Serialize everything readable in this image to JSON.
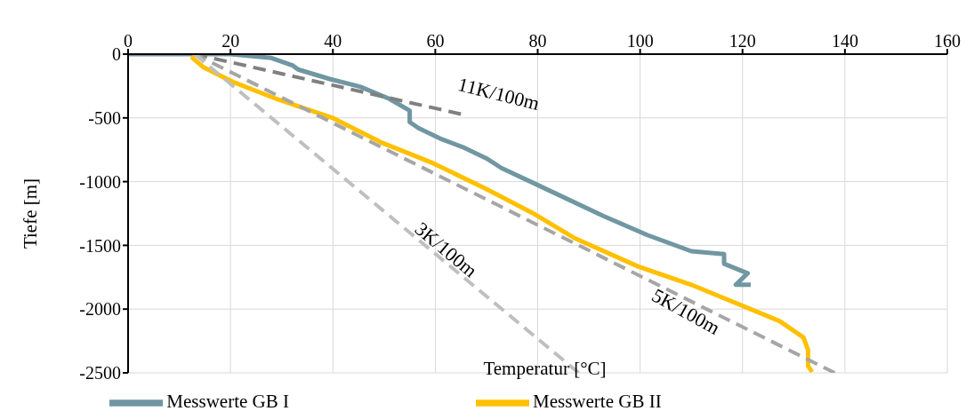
{
  "chart_data": {
    "type": "line",
    "xlabel": "Temperatur [°C]",
    "ylabel": "Tiefe [m]",
    "xlim": [
      0,
      160
    ],
    "xticks": [
      0,
      20,
      40,
      60,
      80,
      100,
      120,
      140,
      160
    ],
    "ylim": [
      -2500,
      0
    ],
    "yticks": [
      -2500,
      -2000,
      -1500,
      -1000,
      -500,
      0
    ],
    "grid": true,
    "legend": "bottom",
    "series": [
      {
        "name": "Messwerte GB I",
        "color": "#7097a2",
        "line_style": "solid",
        "x": [
          0,
          20,
          28,
          32.2,
          33.2,
          39.4,
          45.3,
          51,
          55,
          55,
          56.7,
          61.3,
          65.3,
          70,
          72.9,
          79.7,
          92.8,
          101.4,
          110,
          116.4,
          116.4,
          121,
          118.7,
          121.6
        ],
        "values": [
          0,
          0,
          -30,
          -90,
          -120,
          -195,
          -255,
          -350,
          -443,
          -533,
          -580,
          -668,
          -728,
          -818,
          -893,
          -1021,
          -1269,
          -1419,
          -1546,
          -1569,
          -1644,
          -1719,
          -1809,
          -1809
        ]
      },
      {
        "name": "Messwerte GB II",
        "color": "#ffc000",
        "line_style": "solid",
        "x": [
          13,
          12.6,
          14.8,
          20.5,
          28.6,
          40.1,
          49.3,
          59.6,
          70,
          79,
          87.1,
          99.7,
          110,
          125,
          127.3,
          131.9,
          132.8,
          132.8,
          133.6
        ],
        "values": [
          -20,
          -30,
          -105,
          -218,
          -345,
          -503,
          -690,
          -856,
          -1059,
          -1246,
          -1441,
          -1667,
          -1809,
          -2057,
          -2095,
          -2222,
          -2320,
          -2447,
          -2492
        ]
      },
      {
        "color": "#808080",
        "line_style": "dashed",
        "x": [
          13,
          65
        ],
        "values": [
          0,
          -470
        ]
      },
      {
        "color": "#a6a6a6",
        "line_style": "dashed",
        "x": [
          13,
          138
        ],
        "values": [
          0,
          -2500
        ]
      },
      {
        "color": "#bfbfbf",
        "line_style": "dashed",
        "x": [
          13,
          88
        ],
        "values": [
          0,
          -2500
        ]
      }
    ],
    "annotations": [
      "11K/100m",
      "3K/100m",
      "5K/100m"
    ]
  }
}
